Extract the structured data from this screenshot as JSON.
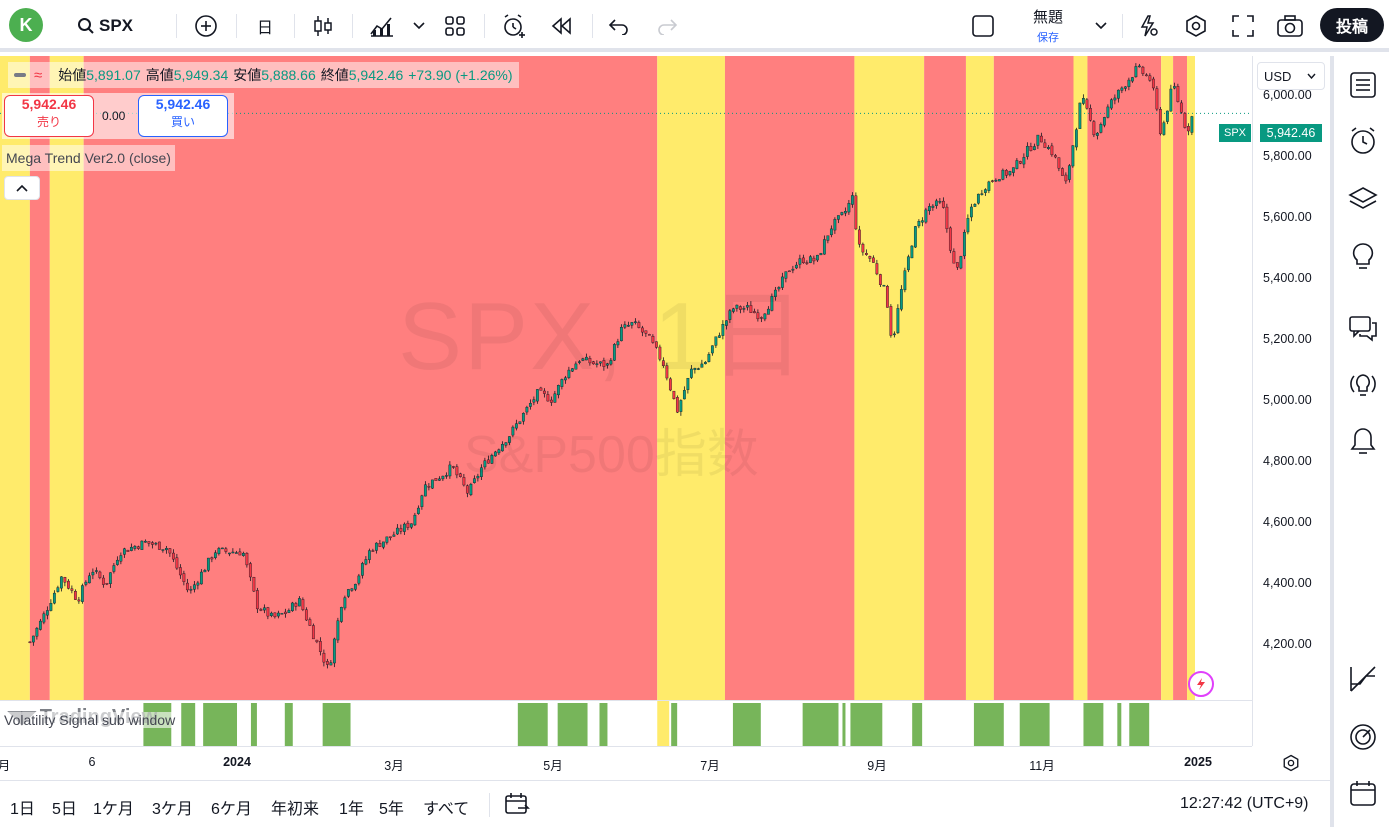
{
  "toolbar": {
    "avatar_letter": "K",
    "symbol": "SPX",
    "interval": "日",
    "layout_title": "無題",
    "layout_save": "保存",
    "post_label": "投稿"
  },
  "legend": {
    "open_label": "始値",
    "open": "5,891.07",
    "high_label": "高値",
    "high": "5,949.34",
    "low_label": "安値",
    "low": "5,888.66",
    "close_label": "終値",
    "close": "5,942.46",
    "change": "+73.90 (+1.26%)"
  },
  "trade": {
    "sell_price": "5,942.46",
    "sell_label": "売り",
    "spread": "0.00",
    "buy_price": "5,942.46",
    "buy_label": "買い"
  },
  "indicator": {
    "name": "Mega Trend Ver2.0 (close)"
  },
  "sub_pane": {
    "name": "Volatility Signal sub window"
  },
  "logo": {
    "text": "TradingView"
  },
  "watermark": {
    "title": "SPX, 1日",
    "subtitle": "S&P500指数"
  },
  "price_axis": {
    "currency": "USD",
    "ticks": [
      "6,000.00",
      "5,800.00",
      "5,600.00",
      "5,400.00",
      "5,200.00",
      "5,000.00",
      "4,800.00",
      "4,600.00",
      "4,400.00",
      "4,200.00"
    ],
    "last_price": "5,942.46",
    "symbol_tag": "SPX"
  },
  "time_axis": {
    "ticks": [
      {
        "label": "月",
        "bold": false
      },
      {
        "label": "6",
        "bold": false
      },
      {
        "label": "2024",
        "bold": true
      },
      {
        "label": "3月",
        "bold": false
      },
      {
        "label": "5月",
        "bold": false
      },
      {
        "label": "7月",
        "bold": false
      },
      {
        "label": "9月",
        "bold": false
      },
      {
        "label": "11月",
        "bold": false
      },
      {
        "label": "2025",
        "bold": true
      }
    ]
  },
  "bottom": {
    "periods": [
      "1日",
      "5日",
      "1ケ月",
      "3ケ月",
      "6ケ月",
      "年初来",
      "1年",
      "5年",
      "すべて"
    ],
    "clock": "12:27:42 (UTC+9)"
  },
  "colors": {
    "bull": "#089981",
    "bear": "#f23645",
    "band_red": "#ff7f7f",
    "band_yellow": "#ffeb6b",
    "signal_green": "#77b55a"
  },
  "chart_data": {
    "type": "candlestick",
    "y_range": [
      4020,
      6130
    ],
    "price_series": [
      [
        "2023-05-30",
        4210
      ],
      [
        "2023-06-05",
        4283
      ],
      [
        "2023-06-15",
        4425
      ],
      [
        "2023-06-23",
        4348
      ],
      [
        "2023-06-30",
        4450
      ],
      [
        "2023-07-07",
        4398
      ],
      [
        "2023-07-14",
        4505
      ],
      [
        "2023-07-27",
        4537
      ],
      [
        "2023-08-07",
        4518
      ],
      [
        "2023-08-18",
        4370
      ],
      [
        "2023-08-31",
        4508
      ],
      [
        "2023-09-14",
        4505
      ],
      [
        "2023-09-21",
        4330
      ],
      [
        "2023-09-29",
        4288
      ],
      [
        "2023-10-06",
        4308
      ],
      [
        "2023-10-12",
        4349
      ],
      [
        "2023-10-20",
        4224
      ],
      [
        "2023-10-27",
        4117
      ],
      [
        "2023-11-03",
        4358
      ],
      [
        "2023-11-10",
        4415
      ],
      [
        "2023-11-17",
        4514
      ],
      [
        "2023-11-30",
        4568
      ],
      [
        "2023-12-08",
        4604
      ],
      [
        "2023-12-14",
        4719
      ],
      [
        "2023-12-22",
        4754
      ],
      [
        "2023-12-28",
        4783
      ],
      [
        "2024-01-05",
        4697
      ],
      [
        "2024-01-12",
        4783
      ],
      [
        "2024-01-19",
        4839
      ],
      [
        "2024-01-26",
        4890
      ],
      [
        "2024-02-02",
        4958
      ],
      [
        "2024-02-09",
        5026
      ],
      [
        "2024-02-16",
        5005
      ],
      [
        "2024-02-23",
        5088
      ],
      [
        "2024-03-01",
        5137
      ],
      [
        "2024-03-08",
        5123
      ],
      [
        "2024-03-15",
        5117
      ],
      [
        "2024-03-22",
        5234
      ],
      [
        "2024-03-28",
        5254
      ],
      [
        "2024-04-05",
        5204
      ],
      [
        "2024-04-12",
        5123
      ],
      [
        "2024-04-19",
        4967
      ],
      [
        "2024-04-26",
        5099
      ],
      [
        "2024-05-03",
        5127
      ],
      [
        "2024-05-10",
        5222
      ],
      [
        "2024-05-17",
        5303
      ],
      [
        "2024-05-24",
        5304
      ],
      [
        "2024-05-31",
        5277
      ],
      [
        "2024-06-07",
        5346
      ],
      [
        "2024-06-14",
        5431
      ],
      [
        "2024-06-21",
        5464
      ],
      [
        "2024-06-28",
        5460
      ],
      [
        "2024-07-05",
        5567
      ],
      [
        "2024-07-12",
        5615
      ],
      [
        "2024-07-16",
        5667
      ],
      [
        "2024-07-19",
        5505
      ],
      [
        "2024-07-26",
        5459
      ],
      [
        "2024-08-02",
        5346
      ],
      [
        "2024-08-05",
        5186
      ],
      [
        "2024-08-09",
        5344
      ],
      [
        "2024-08-16",
        5554
      ],
      [
        "2024-08-23",
        5634
      ],
      [
        "2024-08-30",
        5648
      ],
      [
        "2024-09-06",
        5408
      ],
      [
        "2024-09-13",
        5626
      ],
      [
        "2024-09-20",
        5702
      ],
      [
        "2024-09-27",
        5738
      ],
      [
        "2024-10-04",
        5751
      ],
      [
        "2024-10-11",
        5815
      ],
      [
        "2024-10-18",
        5864
      ],
      [
        "2024-10-25",
        5808
      ],
      [
        "2024-10-31",
        5705
      ],
      [
        "2024-11-08",
        5995
      ],
      [
        "2024-11-15",
        5870
      ],
      [
        "2024-11-22",
        5969
      ],
      [
        "2024-11-29",
        6032
      ],
      [
        "2024-12-06",
        6090
      ],
      [
        "2024-12-13",
        6051
      ],
      [
        "2024-12-18",
        5872
      ],
      [
        "2024-12-24",
        6040
      ],
      [
        "2024-12-27",
        5970
      ],
      [
        "2024-12-31",
        5881
      ],
      [
        "2025-01-03",
        5942
      ]
    ],
    "trend_bands": [
      [
        "2023-05-15",
        "2023-05-30",
        "yellow"
      ],
      [
        "2023-05-30",
        "2023-06-09",
        "red"
      ],
      [
        "2023-06-09",
        "2023-06-26",
        "yellow"
      ],
      [
        "2023-06-26",
        "2024-04-09",
        "red"
      ],
      [
        "2024-04-09",
        "2024-05-13",
        "yellow"
      ],
      [
        "2024-05-13",
        "2024-07-17",
        "red"
      ],
      [
        "2024-07-17",
        "2024-08-21",
        "yellow"
      ],
      [
        "2024-08-21",
        "2024-09-11",
        "red"
      ],
      [
        "2024-09-11",
        "2024-09-25",
        "yellow"
      ],
      [
        "2024-09-25",
        "2024-11-04",
        "red"
      ],
      [
        "2024-11-04",
        "2024-11-11",
        "yellow"
      ],
      [
        "2024-11-11",
        "2024-12-18",
        "red"
      ],
      [
        "2024-12-18",
        "2024-12-24",
        "yellow"
      ],
      [
        "2024-12-24",
        "2024-12-31",
        "red"
      ],
      [
        "2024-12-31",
        "2025-01-04",
        "yellow"
      ]
    ],
    "sub_yellow": [
      [
        "2024-04-09",
        "2024-04-15"
      ]
    ],
    "signals": [
      [
        "2023-07-26",
        "2023-08-09"
      ],
      [
        "2023-08-14",
        "2023-08-21"
      ],
      [
        "2023-08-25",
        "2023-09-11"
      ],
      [
        "2023-09-18",
        "2023-09-21"
      ],
      [
        "2023-10-05",
        "2023-10-09"
      ],
      [
        "2023-10-24",
        "2023-11-07"
      ],
      [
        "2024-01-30",
        "2024-02-14"
      ],
      [
        "2024-02-19",
        "2024-03-05"
      ],
      [
        "2024-03-11",
        "2024-03-15"
      ],
      [
        "2024-04-16",
        "2024-04-19"
      ],
      [
        "2024-05-17",
        "2024-05-31"
      ],
      [
        "2024-06-21",
        "2024-07-09"
      ],
      [
        "2024-07-11",
        "2024-07-12"
      ],
      [
        "2024-07-15",
        "2024-07-31"
      ],
      [
        "2024-08-15",
        "2024-08-20"
      ],
      [
        "2024-09-15",
        "2024-09-30"
      ],
      [
        "2024-10-08",
        "2024-10-23"
      ],
      [
        "2024-11-09",
        "2024-11-19"
      ],
      [
        "2024-11-26",
        "2024-11-28"
      ],
      [
        "2024-12-02",
        "2024-12-12"
      ]
    ]
  }
}
